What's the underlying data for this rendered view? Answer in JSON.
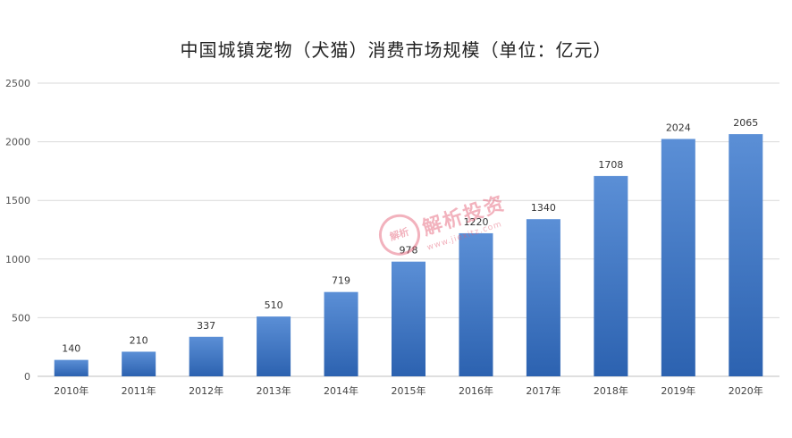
{
  "chart_data": {
    "type": "bar",
    "title": "中国城镇宠物（犬猫）消费市场规模（单位：亿元）",
    "categories": [
      "2010年",
      "2011年",
      "2012年",
      "2013年",
      "2014年",
      "2015年",
      "2016年",
      "2017年",
      "2018年",
      "2019年",
      "2020年"
    ],
    "values": [
      140,
      210,
      337,
      510,
      719,
      978,
      1220,
      1340,
      1708,
      2024,
      2065
    ],
    "ylim": [
      0,
      2500
    ],
    "yticks": [
      0,
      500,
      1000,
      1500,
      2000,
      2500
    ],
    "xlabel": "",
    "ylabel": "",
    "grid": true,
    "legend": "none",
    "colors": {
      "bar_top": "#5b8fd6",
      "bar_bottom": "#2c62b0",
      "grid": "#d9d9d9"
    }
  },
  "watermark": {
    "logo_text": "解析",
    "text": "解析投资",
    "url": "www.jiexitz.com"
  }
}
